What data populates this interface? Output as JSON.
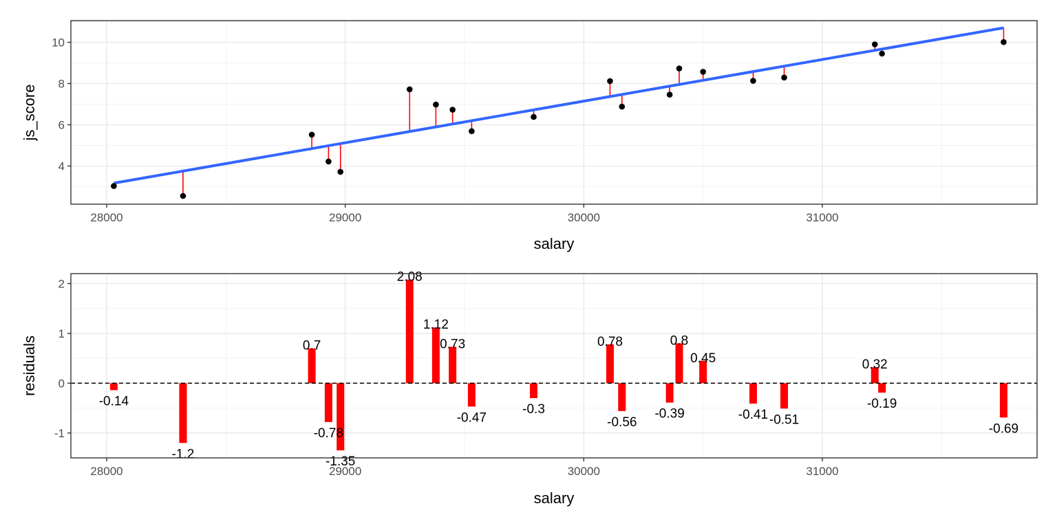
{
  "colors": {
    "fit_line": "#3366ff",
    "residual": "#ff0000",
    "point": "#000000",
    "grid_major": "#ebebeb",
    "grid_minor": "#f2f2f2",
    "panel_border": "#333333"
  },
  "chart_data": [
    {
      "type": "scatter",
      "xlabel": "salary",
      "ylabel": "js_score",
      "xlim": [
        27850,
        31900
      ],
      "ylim": [
        2.15,
        11.05
      ],
      "xticks": [
        28000,
        29000,
        30000,
        31000
      ],
      "yticks": [
        4,
        6,
        8,
        10
      ],
      "grid": true,
      "fit_line": {
        "type": "linear",
        "x": [
          28030,
          31760
        ],
        "y": [
          3.17,
          10.7
        ]
      },
      "points": [
        {
          "x": 28030,
          "y": 3.03,
          "fitted": 3.17
        },
        {
          "x": 28320,
          "y": 2.55,
          "fitted": 3.75
        },
        {
          "x": 28860,
          "y": 5.52,
          "fitted": 4.82
        },
        {
          "x": 28930,
          "y": 4.22,
          "fitted": 5.0
        },
        {
          "x": 28980,
          "y": 3.72,
          "fitted": 5.07
        },
        {
          "x": 29270,
          "y": 7.72,
          "fitted": 5.64
        },
        {
          "x": 29380,
          "y": 6.98,
          "fitted": 5.86
        },
        {
          "x": 29450,
          "y": 6.73,
          "fitted": 6.0
        },
        {
          "x": 29530,
          "y": 5.69,
          "fitted": 6.16
        },
        {
          "x": 29790,
          "y": 6.38,
          "fitted": 6.68
        },
        {
          "x": 30110,
          "y": 8.12,
          "fitted": 7.34
        },
        {
          "x": 30160,
          "y": 6.88,
          "fitted": 7.44
        },
        {
          "x": 30360,
          "y": 7.46,
          "fitted": 7.85
        },
        {
          "x": 30400,
          "y": 8.73,
          "fitted": 7.93
        },
        {
          "x": 30500,
          "y": 8.57,
          "fitted": 8.12
        },
        {
          "x": 30710,
          "y": 8.13,
          "fitted": 8.54
        },
        {
          "x": 30840,
          "y": 8.29,
          "fitted": 8.8
        },
        {
          "x": 31220,
          "y": 9.9,
          "fitted": 9.58
        },
        {
          "x": 31250,
          "y": 9.45,
          "fitted": 9.64
        },
        {
          "x": 31760,
          "y": 10.01,
          "fitted": 10.7
        }
      ]
    },
    {
      "type": "bar",
      "xlabel": "salary",
      "ylabel": "residuals",
      "xlim": [
        27850,
        31900
      ],
      "ylim": [
        -1.5,
        2.2
      ],
      "xticks": [
        28000,
        29000,
        30000,
        31000
      ],
      "yticks": [
        -1,
        0,
        1,
        2
      ],
      "grid": true,
      "reference_line": {
        "y": 0,
        "style": "dashed"
      },
      "bars": [
        {
          "x": 28030,
          "value": -0.14,
          "label": "-0.14"
        },
        {
          "x": 28320,
          "value": -1.2,
          "label": "-1.2"
        },
        {
          "x": 28860,
          "value": 0.7,
          "label": "0.7"
        },
        {
          "x": 28930,
          "value": -0.78,
          "label": "-0.78"
        },
        {
          "x": 28980,
          "value": -1.35,
          "label": "-1.35"
        },
        {
          "x": 29270,
          "value": 2.08,
          "label": "2.08"
        },
        {
          "x": 29380,
          "value": 1.12,
          "label": "1.12"
        },
        {
          "x": 29450,
          "value": 0.73,
          "label": "0.73"
        },
        {
          "x": 29530,
          "value": -0.47,
          "label": "-0.47"
        },
        {
          "x": 29790,
          "value": -0.3,
          "label": "-0.3"
        },
        {
          "x": 30110,
          "value": 0.78,
          "label": "0.78"
        },
        {
          "x": 30160,
          "value": -0.56,
          "label": "-0.56"
        },
        {
          "x": 30360,
          "value": -0.39,
          "label": "-0.39"
        },
        {
          "x": 30400,
          "value": 0.8,
          "label": "0.8"
        },
        {
          "x": 30500,
          "value": 0.45,
          "label": "0.45"
        },
        {
          "x": 30710,
          "value": -0.41,
          "label": "-0.41"
        },
        {
          "x": 30840,
          "value": -0.51,
          "label": "-0.51"
        },
        {
          "x": 31220,
          "value": 0.32,
          "label": "0.32"
        },
        {
          "x": 31250,
          "value": -0.19,
          "label": "-0.19"
        },
        {
          "x": 31760,
          "value": -0.69,
          "label": "-0.69"
        }
      ]
    }
  ]
}
